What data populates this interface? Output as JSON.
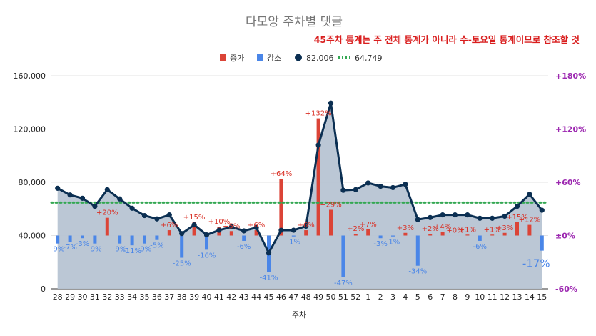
{
  "chart_data": {
    "type": "bar-line-combo",
    "title": "다모앙 주차별 댓글",
    "note": "45주차 통계는 주 전체 통계가 아니라 수-토요일 통계이므로 참조할 것",
    "xlabel": "주차",
    "categories": [
      "28",
      "29",
      "30",
      "31",
      "32",
      "33",
      "34",
      "35",
      "36",
      "37",
      "38",
      "39",
      "40",
      "41",
      "42",
      "43",
      "44",
      "45",
      "46",
      "47",
      "48",
      "49",
      "50",
      "51",
      "52",
      "1",
      "2",
      "3",
      "4",
      "5",
      "6",
      "7",
      "8",
      "9",
      "10",
      "11",
      "12",
      "13",
      "14",
      "15"
    ],
    "left_axis": {
      "min": 0,
      "max": 160000,
      "ticks": [
        "0",
        "40,000",
        "80,000",
        "120,000",
        "160,000"
      ]
    },
    "right_axis": {
      "min": -60,
      "max": 180,
      "ticks": [
        "-60%",
        "±0%",
        "+60%",
        "+120%",
        "+180%"
      ]
    },
    "legend": [
      {
        "name": "증가",
        "color": "#db4437",
        "kind": "bar"
      },
      {
        "name": "감소",
        "color": "#4a86e8",
        "kind": "bar"
      },
      {
        "name": "82,006",
        "color": "#0b2f52",
        "kind": "line"
      },
      {
        "name": "64,749",
        "color": "#34a853",
        "kind": "dotted-line"
      }
    ],
    "totals": [
      75500,
      70500,
      68000,
      62000,
      74500,
      67500,
      60500,
      55000,
      52500,
      55500,
      41500,
      48000,
      40500,
      44000,
      46500,
      43500,
      46000,
      27000,
      44000,
      44000,
      47000,
      108000,
      139500,
      74000,
      74500,
      79500,
      77000,
      76000,
      78500,
      52000,
      53500,
      55500,
      55500,
      55500,
      53000,
      53000,
      54500,
      62000,
      71000,
      59000
    ],
    "average": 64749,
    "change_pct": [
      -9,
      -7,
      -3,
      -9,
      20,
      -9,
      -11,
      -9,
      -5,
      6,
      -25,
      15,
      -16,
      10,
      5,
      -6,
      6,
      -41,
      64,
      -1,
      6,
      132,
      29,
      -47,
      2,
      7,
      -3,
      -1,
      3,
      -34,
      2,
      4,
      0,
      1,
      -6,
      1,
      3,
      15,
      12,
      -17
    ],
    "change_labels": [
      "-9%",
      "-7%",
      "-3%",
      "-9%",
      "+20%",
      "-9%",
      "-11%",
      "-9%",
      "-5%",
      "+6%",
      "-25%",
      "+15%",
      "-16%",
      "+10%",
      "+5%",
      "-6%",
      "+6%",
      "-41%",
      "+64%",
      "-1%",
      "+6%",
      "+132%",
      "+29%",
      "-47%",
      "+2%",
      "+7%",
      "-3%",
      "-1%",
      "+3%",
      "-34%",
      "+2%",
      "+4%",
      "+0%",
      "+1%",
      "-6%",
      "+1%",
      "+3%",
      "+15%",
      "+12%",
      "-17%"
    ]
  }
}
